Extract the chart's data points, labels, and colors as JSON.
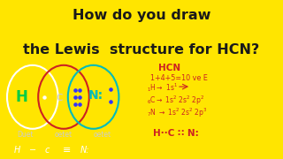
{
  "title_line1": "How do you draw",
  "title_line2": "the Lewis  structure for HCN?",
  "title_bg": "#FFE500",
  "title_color": "#1a1a1a",
  "left_bg": "#000000",
  "right_bg": "#ffffff",
  "h_circle_color": "#ffffff",
  "c_circle_color": "#cc2222",
  "n_circle_color": "#00bbbb",
  "h_text_color": "#00cc44",
  "c_text_color": "#cccccc",
  "n_text_color": "#00bbbb",
  "label_color": "#cccccc",
  "dot_color": "#3333ff",
  "formula_color": "#ffffff",
  "right_text_color": "#cc2222",
  "title_fontsize": 11.5,
  "label_fontsize": 5.5,
  "formula_fontsize": 7
}
